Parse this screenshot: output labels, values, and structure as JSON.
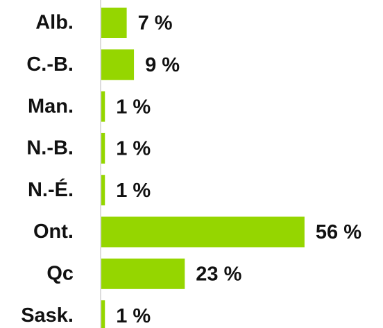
{
  "chart_data": {
    "type": "bar",
    "orientation": "horizontal",
    "categories": [
      "Alb.",
      "C.-B.",
      "Man.",
      "N.-B.",
      "N.-É.",
      "Ont.",
      "Qc",
      "Sask."
    ],
    "values": [
      7,
      9,
      1,
      1,
      1,
      56,
      23,
      1
    ],
    "value_labels": [
      "7 %",
      "9 %",
      "1 %",
      "1 %",
      "1 %",
      "56 %",
      "23 %",
      "1 %"
    ],
    "color": "#95d600"
  }
}
